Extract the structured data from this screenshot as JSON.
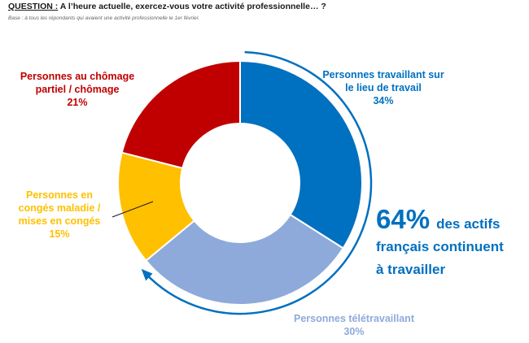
{
  "question": {
    "label": "QUESTION :",
    "text": "A l’heure actuelle, exercez-vous votre activité professionnelle… ?"
  },
  "base": "Base : à tous les répondants qui avaient une activité professionnelle le 1er février.",
  "headline": {
    "percent": "64%",
    "line1": "des actifs",
    "line2": "français continuent",
    "line3": "à travailler"
  },
  "chart_data": {
    "type": "pie",
    "style": "donut",
    "unit": "%",
    "slices": [
      {
        "label_lines": [
          "Personnes travaillant sur",
          "le lieu de travail"
        ],
        "value": 34,
        "value_label": "34%",
        "color": "#0070c0"
      },
      {
        "label_lines": [
          "Personnes télétravaillant"
        ],
        "value": 30,
        "value_label": "30%",
        "color": "#8eaadb"
      },
      {
        "label_lines": [
          "Personnes en",
          "congés maladie /",
          "mises en congés"
        ],
        "value": 15,
        "value_label": "15%",
        "color": "#ffc000"
      },
      {
        "label_lines": [
          "Personnes au chômage",
          "partiel / chômage"
        ],
        "value": 21,
        "value_label": "21%",
        "color": "#c00000"
      }
    ],
    "label_colors": [
      "#0070c0",
      "#8eaadb",
      "#ffc000",
      "#c00000"
    ]
  }
}
